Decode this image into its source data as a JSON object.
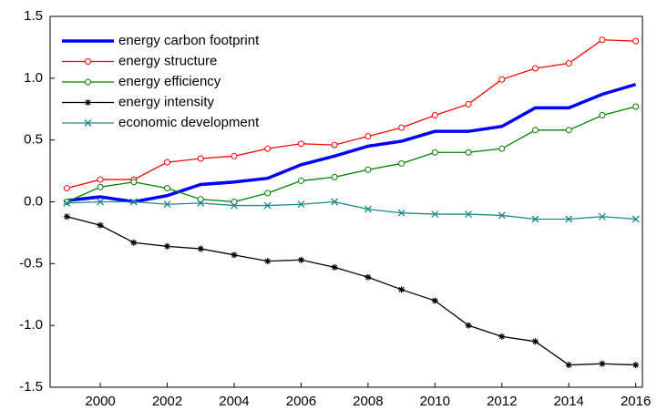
{
  "chart_data": {
    "type": "line",
    "x": [
      1999,
      2000,
      2001,
      2002,
      2003,
      2004,
      2005,
      2006,
      2007,
      2008,
      2009,
      2010,
      2011,
      2012,
      2013,
      2014,
      2015,
      2016
    ],
    "series": [
      {
        "name": "energy carbon footprint",
        "color": "#0000ff",
        "marker": "none",
        "values": [
          0.01,
          0.04,
          0.0,
          0.05,
          0.14,
          0.16,
          0.19,
          0.3,
          0.37,
          0.45,
          0.49,
          0.57,
          0.57,
          0.61,
          0.76,
          0.76,
          0.87,
          0.95
        ]
      },
      {
        "name": "energy structure",
        "color": "#ff0000",
        "marker": "circle",
        "values": [
          0.11,
          0.18,
          0.18,
          0.32,
          0.35,
          0.37,
          0.43,
          0.47,
          0.46,
          0.53,
          0.6,
          0.7,
          0.79,
          0.99,
          1.08,
          1.12,
          1.31,
          1.3
        ]
      },
      {
        "name": "energy efficiency",
        "color": "#008000",
        "marker": "circle",
        "values": [
          0.0,
          0.12,
          0.16,
          0.11,
          0.02,
          0.0,
          0.07,
          0.17,
          0.2,
          0.26,
          0.31,
          0.4,
          0.4,
          0.43,
          0.58,
          0.58,
          0.7,
          0.77
        ]
      },
      {
        "name": "energy intensity",
        "color": "#000000",
        "marker": "star",
        "values": [
          -0.12,
          -0.19,
          -0.33,
          -0.36,
          -0.38,
          -0.43,
          -0.48,
          -0.47,
          -0.53,
          -0.61,
          -0.71,
          -0.8,
          -1.0,
          -1.09,
          -1.13,
          -1.32,
          -1.31,
          -1.32
        ]
      },
      {
        "name": "economic development",
        "color": "#1a8a8a",
        "marker": "x",
        "values": [
          -0.01,
          0.0,
          0.0,
          -0.02,
          -0.01,
          -0.03,
          -0.03,
          -0.02,
          0.0,
          -0.06,
          -0.09,
          -0.1,
          -0.1,
          -0.11,
          -0.14,
          -0.14,
          -0.12,
          -0.14
        ]
      }
    ],
    "xlim": [
      1998.5,
      2016.2
    ],
    "xticks": [
      2000,
      2002,
      2004,
      2006,
      2008,
      2010,
      2012,
      2014,
      2016
    ],
    "ylim": [
      -1.5,
      1.5
    ],
    "yticks": [
      {
        "value": -1.5,
        "label": "-1.5"
      },
      {
        "value": -1.0,
        "label": "-1.0"
      },
      -0.5,
      {
        "value": 0.0,
        "label": "0.0"
      },
      0.5,
      {
        "value": 1.0,
        "label": "1.0"
      },
      {
        "value": 1.5,
        "label": "1.5"
      }
    ],
    "legend": "upper left"
  }
}
